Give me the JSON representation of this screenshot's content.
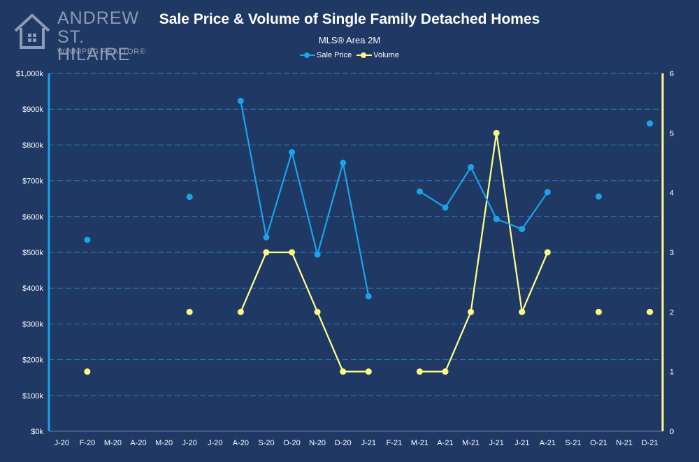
{
  "logo": {
    "line1": "ANDREW",
    "line2": "ST. HILAIRE",
    "tagline": "WINNIPEG REALTOR®",
    "icon": "house-icon"
  },
  "colors": {
    "background": "#1f3864",
    "price": "#1aa3e8",
    "volume": "#ffff88",
    "grid": "#2e7bbf",
    "axis_left": "#1aa3e8",
    "axis_right": "#ffff88",
    "text": "#ffffff"
  },
  "chart_data": {
    "type": "line",
    "title": "Sale Price & Volume of Single Family Detached Homes",
    "subtitle": "MLS® Area 2M",
    "legend_position": "top-center",
    "grid": true,
    "categories": [
      "J-20",
      "F-20",
      "M-20",
      "A-20",
      "M-20",
      "J-20",
      "J-20",
      "A-20",
      "S-20",
      "O-20",
      "N-20",
      "D-20",
      "J-21",
      "F-21",
      "M-21",
      "A-21",
      "M-21",
      "J-21",
      "J-21",
      "A-21",
      "S-21",
      "O-21",
      "N-21",
      "D-21"
    ],
    "series": [
      {
        "name": "Sale Price",
        "axis": "left",
        "values": [
          null,
          535000,
          null,
          null,
          null,
          655000,
          null,
          923000,
          542000,
          780000,
          494000,
          750000,
          377000,
          null,
          670000,
          625000,
          738000,
          593000,
          565000,
          668000,
          null,
          656000,
          null,
          860000
        ]
      },
      {
        "name": "Volume",
        "axis": "right",
        "values": [
          null,
          1,
          null,
          null,
          null,
          2,
          null,
          2,
          3,
          3,
          2,
          1,
          1,
          null,
          1,
          1,
          2,
          5,
          2,
          3,
          null,
          2,
          null,
          2
        ]
      }
    ],
    "y_left": {
      "min": 0,
      "max": 1000000,
      "step": 100000,
      "tick_labels": [
        "$0k",
        "$100k",
        "$200k",
        "$300k",
        "$400k",
        "$500k",
        "$600k",
        "$700k",
        "$800k",
        "$900k",
        "$1,000k"
      ]
    },
    "y_right": {
      "min": 0,
      "max": 6,
      "step": 1,
      "tick_labels": [
        "0",
        "1",
        "2",
        "3",
        "4",
        "5",
        "6"
      ]
    }
  }
}
